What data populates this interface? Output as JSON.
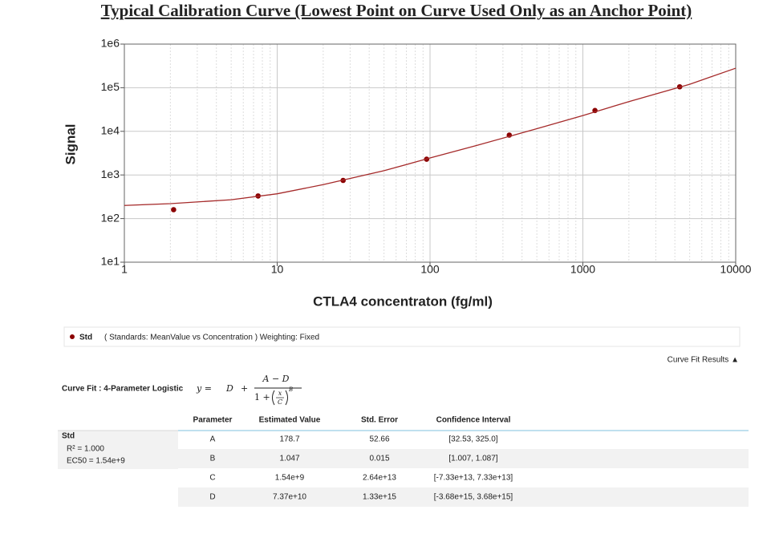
{
  "chart_data": {
    "type": "scatter",
    "title": "Typical Calibration Curve (Lowest Point on Curve Used Only as an Anchor Point)",
    "x_label": "CTLA4 concentraton (fg/ml)",
    "y_label": "Signal",
    "log_x": true,
    "log_y": true,
    "grid": true,
    "xlim": [
      1,
      10000
    ],
    "xticks": [
      1,
      10,
      100,
      1000,
      10000
    ],
    "ylim": [
      10,
      1000000
    ],
    "yticks": [
      {
        "value": 10,
        "label": "1e1"
      },
      {
        "value": 100,
        "label": "1e2"
      },
      {
        "value": 1000,
        "label": "1e3"
      },
      {
        "value": 10000,
        "label": "1e4"
      },
      {
        "value": 100000,
        "label": "1e5"
      },
      {
        "value": 1000000,
        "label": "1e6"
      }
    ],
    "series": [
      {
        "name": "Std",
        "type": "scatter",
        "color": "#8b0000",
        "x": [
          2.1,
          7.5,
          27,
          95,
          330,
          1200,
          4300
        ],
        "values": [
          160,
          330,
          750,
          2300,
          8200,
          30000,
          105000
        ]
      },
      {
        "type": "line",
        "color": "#a52a2a",
        "x": [
          1,
          2,
          5,
          10,
          20,
          50,
          100,
          200,
          500,
          1000,
          2000,
          5000,
          10000
        ],
        "values": [
          200,
          220,
          270,
          370,
          600,
          1250,
          2450,
          4700,
          11500,
          23000,
          48000,
          120000,
          280000
        ]
      }
    ]
  },
  "legend": {
    "description": "( Standards: MeanValue vs Concentration )  Weighting: Fixed"
  },
  "curve_fit_toggle": "Curve Fit Results ▲",
  "curve_fit": {
    "label": "Curve Fit : 4-Parameter Logistic",
    "formula": {
      "lhs": "y =",
      "d": "D",
      "plus": "+",
      "numerator": "A − D",
      "one_plus": "1 +",
      "x": "x",
      "c": "C",
      "b": "B"
    },
    "table": {
      "header": [
        "Parameter",
        "Estimated Value",
        "Std. Error",
        "Confidence Interval"
      ],
      "group": "Std",
      "stats": [
        "R² = 1.000",
        "EC50 = 1.54e+9"
      ],
      "rows": [
        [
          "A",
          "178.7",
          "52.66",
          "[32.53, 325.0]"
        ],
        [
          "B",
          "1.047",
          "0.015",
          "[1.007, 1.087]"
        ],
        [
          "C",
          "1.54e+9",
          "2.64e+13",
          "[-7.33e+13, 7.33e+13]"
        ],
        [
          "D",
          "7.37e+10",
          "1.33e+15",
          "[-3.68e+15, 3.68e+15]"
        ]
      ]
    }
  }
}
